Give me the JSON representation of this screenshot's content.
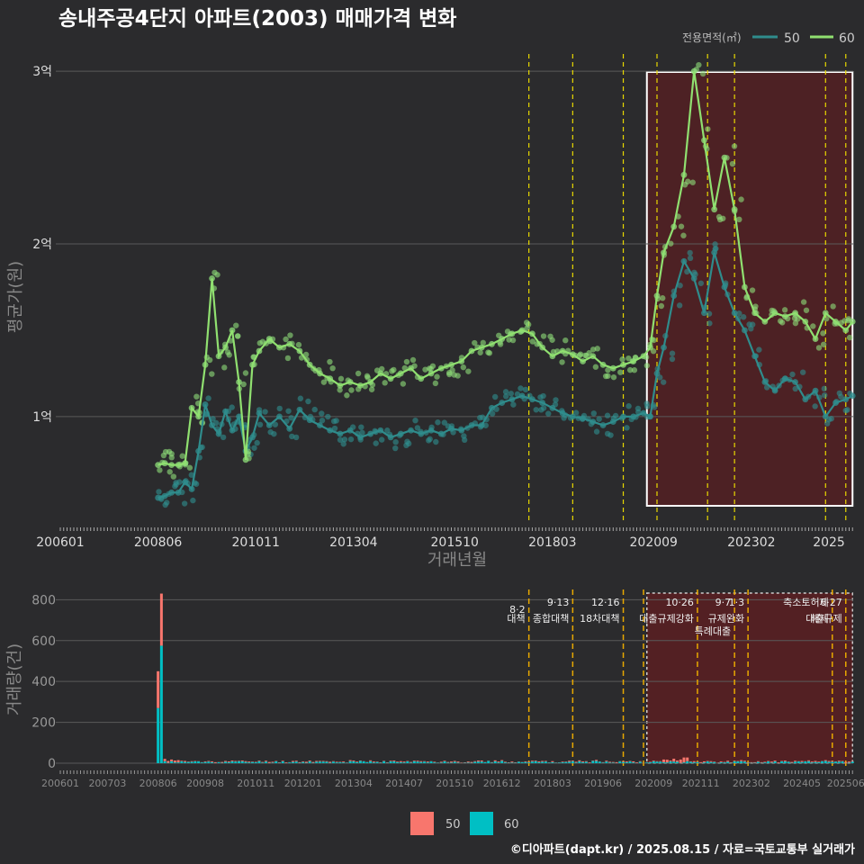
{
  "title": "송내주공4단지 아파트(2003) 매매가격 변화",
  "footer": "©디아파트(dapt.kr) / 2025.08.15 / 자료=국토교통부 실거래가",
  "colors": {
    "background": "#2b2b2d",
    "series_50_line": "#2f8c8c",
    "series_60_line": "#90e070",
    "bar_50": "#f8766d",
    "bar_60": "#00bfc4",
    "policy_line": "#e8d800",
    "bar_policy_line": "#e8a800",
    "highlight_fill": "#5a1f22",
    "grid": "#5a5a5a"
  },
  "chart_data": [
    {
      "type": "line",
      "title": "송내주공4단지 아파트(2003) 매매가격 변화",
      "xlabel": "거래년월",
      "ylabel": "평균가(원)",
      "x_tick_labels": [
        "200601",
        "200806",
        "201011",
        "201304",
        "201510",
        "201803",
        "202009",
        "202302",
        "2025"
      ],
      "y_ticks": [
        {
          "value": 1,
          "label": "1억"
        },
        {
          "value": 2,
          "label": "2억"
        },
        {
          "value": 3,
          "label": "3억"
        }
      ],
      "ylim": [
        0.4,
        3.1
      ],
      "legend": {
        "title": "전용면적(㎡)",
        "position": "top-right"
      },
      "policy_dates": [
        "2017-08",
        "2018-09",
        "2019-12",
        "2020-10",
        "2022-01",
        "2022-09",
        "2024-12",
        "2025-06"
      ],
      "highlight_range": [
        "2020-07",
        "2025-08"
      ],
      "series": [
        {
          "name": "50",
          "points": [
            [
              "2008-06",
              0.53
            ],
            [
              "2008-08",
              0.54
            ],
            [
              "2008-10",
              0.56
            ],
            [
              "2008-12",
              0.56
            ],
            [
              "2009-02",
              0.62
            ],
            [
              "2009-04",
              0.58
            ],
            [
              "2009-06",
              0.8
            ],
            [
              "2009-08",
              1.07
            ],
            [
              "2009-10",
              0.95
            ],
            [
              "2009-12",
              0.9
            ],
            [
              "2010-02",
              1.03
            ],
            [
              "2010-04",
              0.92
            ],
            [
              "2010-06",
              1.0
            ],
            [
              "2010-08",
              0.8
            ],
            [
              "2010-10",
              0.88
            ],
            [
              "2010-12",
              1.02
            ],
            [
              "2011-03",
              0.95
            ],
            [
              "2011-06",
              1.0
            ],
            [
              "2011-09",
              0.93
            ],
            [
              "2011-12",
              1.04
            ],
            [
              "2012-03",
              0.98
            ],
            [
              "2012-06",
              0.95
            ],
            [
              "2012-09",
              0.92
            ],
            [
              "2012-12",
              0.9
            ],
            [
              "2013-03",
              0.92
            ],
            [
              "2013-06",
              0.88
            ],
            [
              "2013-09",
              0.9
            ],
            [
              "2013-12",
              0.92
            ],
            [
              "2014-03",
              0.88
            ],
            [
              "2014-06",
              0.9
            ],
            [
              "2014-09",
              0.92
            ],
            [
              "2014-12",
              0.9
            ],
            [
              "2015-03",
              0.92
            ],
            [
              "2015-06",
              0.9
            ],
            [
              "2015-09",
              0.93
            ],
            [
              "2015-12",
              0.92
            ],
            [
              "2016-03",
              0.95
            ],
            [
              "2016-06",
              0.95
            ],
            [
              "2016-09",
              1.05
            ],
            [
              "2016-12",
              1.08
            ],
            [
              "2017-03",
              1.1
            ],
            [
              "2017-06",
              1.12
            ],
            [
              "2017-09",
              1.1
            ],
            [
              "2017-12",
              1.08
            ],
            [
              "2018-03",
              1.05
            ],
            [
              "2018-06",
              1.02
            ],
            [
              "2018-09",
              1.0
            ],
            [
              "2018-12",
              0.99
            ],
            [
              "2019-03",
              0.97
            ],
            [
              "2019-06",
              0.95
            ],
            [
              "2019-09",
              0.97
            ],
            [
              "2019-12",
              1.0
            ],
            [
              "2020-03",
              1.0
            ],
            [
              "2020-06",
              1.02
            ],
            [
              "2020-08",
              1.0
            ],
            [
              "2020-10",
              1.25
            ],
            [
              "2020-12",
              1.4
            ],
            [
              "2021-03",
              1.7
            ],
            [
              "2021-06",
              1.9
            ],
            [
              "2021-09",
              1.8
            ],
            [
              "2021-12",
              1.6
            ],
            [
              "2022-03",
              1.95
            ],
            [
              "2022-06",
              1.75
            ],
            [
              "2022-09",
              1.6
            ],
            [
              "2022-12",
              1.5
            ],
            [
              "2023-03",
              1.35
            ],
            [
              "2023-06",
              1.2
            ],
            [
              "2023-09",
              1.15
            ],
            [
              "2023-12",
              1.22
            ],
            [
              "2024-03",
              1.2
            ],
            [
              "2024-06",
              1.1
            ],
            [
              "2024-09",
              1.15
            ],
            [
              "2024-12",
              1.0
            ],
            [
              "2025-03",
              1.08
            ],
            [
              "2025-06",
              1.1
            ],
            [
              "2025-08",
              1.12
            ]
          ]
        },
        {
          "name": "60",
          "points": [
            [
              "2008-06",
              0.72
            ],
            [
              "2008-08",
              0.73
            ],
            [
              "2008-10",
              0.72
            ],
            [
              "2008-12",
              0.72
            ],
            [
              "2009-02",
              0.73
            ],
            [
              "2009-04",
              1.05
            ],
            [
              "2009-06",
              1.0
            ],
            [
              "2009-08",
              1.3
            ],
            [
              "2009-10",
              1.8
            ],
            [
              "2009-12",
              1.35
            ],
            [
              "2010-02",
              1.4
            ],
            [
              "2010-04",
              1.5
            ],
            [
              "2010-06",
              1.2
            ],
            [
              "2010-08",
              0.75
            ],
            [
              "2010-10",
              1.3
            ],
            [
              "2010-12",
              1.38
            ],
            [
              "2011-03",
              1.45
            ],
            [
              "2011-06",
              1.4
            ],
            [
              "2011-09",
              1.42
            ],
            [
              "2011-12",
              1.38
            ],
            [
              "2012-03",
              1.3
            ],
            [
              "2012-06",
              1.25
            ],
            [
              "2012-09",
              1.22
            ],
            [
              "2012-12",
              1.18
            ],
            [
              "2013-03",
              1.2
            ],
            [
              "2013-06",
              1.18
            ],
            [
              "2013-09",
              1.2
            ],
            [
              "2013-12",
              1.25
            ],
            [
              "2014-03",
              1.22
            ],
            [
              "2014-06",
              1.25
            ],
            [
              "2014-09",
              1.28
            ],
            [
              "2014-12",
              1.22
            ],
            [
              "2015-03",
              1.25
            ],
            [
              "2015-06",
              1.28
            ],
            [
              "2015-09",
              1.3
            ],
            [
              "2015-12",
              1.32
            ],
            [
              "2016-03",
              1.38
            ],
            [
              "2016-06",
              1.4
            ],
            [
              "2016-09",
              1.42
            ],
            [
              "2016-12",
              1.45
            ],
            [
              "2017-03",
              1.48
            ],
            [
              "2017-06",
              1.5
            ],
            [
              "2017-09",
              1.48
            ],
            [
              "2017-12",
              1.4
            ],
            [
              "2018-03",
              1.35
            ],
            [
              "2018-06",
              1.38
            ],
            [
              "2018-09",
              1.36
            ],
            [
              "2018-12",
              1.32
            ],
            [
              "2019-03",
              1.35
            ],
            [
              "2019-06",
              1.3
            ],
            [
              "2019-09",
              1.28
            ],
            [
              "2019-12",
              1.3
            ],
            [
              "2020-03",
              1.32
            ],
            [
              "2020-06",
              1.35
            ],
            [
              "2020-08",
              1.4
            ],
            [
              "2020-10",
              1.7
            ],
            [
              "2020-12",
              1.95
            ],
            [
              "2021-03",
              2.1
            ],
            [
              "2021-06",
              2.4
            ],
            [
              "2021-09",
              3.0
            ],
            [
              "2021-12",
              2.6
            ],
            [
              "2022-03",
              2.2
            ],
            [
              "2022-06",
              2.5
            ],
            [
              "2022-09",
              2.2
            ],
            [
              "2022-12",
              1.75
            ],
            [
              "2023-03",
              1.6
            ],
            [
              "2023-06",
              1.55
            ],
            [
              "2023-09",
              1.6
            ],
            [
              "2023-12",
              1.58
            ],
            [
              "2024-03",
              1.6
            ],
            [
              "2024-06",
              1.55
            ],
            [
              "2024-09",
              1.45
            ],
            [
              "2024-12",
              1.6
            ],
            [
              "2025-03",
              1.55
            ],
            [
              "2025-06",
              1.5
            ],
            [
              "2025-08",
              1.55
            ]
          ]
        }
      ]
    },
    {
      "type": "bar",
      "ylabel": "거래량(건)",
      "y_ticks": [
        0,
        200,
        400,
        600,
        800
      ],
      "ylim": [
        0,
        850
      ],
      "stacked": true,
      "x_tick_labels": [
        "200601",
        "200703",
        "200806",
        "200908",
        "201011",
        "201201",
        "201304",
        "201407",
        "201510",
        "201612",
        "201803",
        "201906",
        "202009",
        "202111",
        "202302",
        "202405",
        "202506"
      ],
      "legend": [
        {
          "name": "50"
        },
        {
          "name": "60"
        }
      ],
      "policy_annotations": [
        {
          "date": "2017-08",
          "label": "8·2 대책"
        },
        {
          "date": "2018-09",
          "label": "9·13 종합대책"
        },
        {
          "date": "2019-12",
          "label": "12·16 18차대책"
        },
        {
          "date": "2020-06",
          "label": ""
        },
        {
          "date": "2021-10",
          "label": "10·26 대출규제강화"
        },
        {
          "date": "2022-09",
          "label": "9·7 특례대출"
        },
        {
          "date": "2023-01",
          "label": "1·3 규제완화"
        },
        {
          "date": "2025-06",
          "label": "6·27 대출규제"
        },
        {
          "date": "2025-02",
          "label": "축소토허제 해제"
        }
      ],
      "highlight_range": [
        "2020-07",
        "2025-08"
      ],
      "peaks": [
        {
          "date": "2008-06",
          "value_50": 180,
          "value_60": 270
        },
        {
          "date": "2008-07",
          "value_50": 255,
          "value_60": 575
        }
      ]
    }
  ]
}
